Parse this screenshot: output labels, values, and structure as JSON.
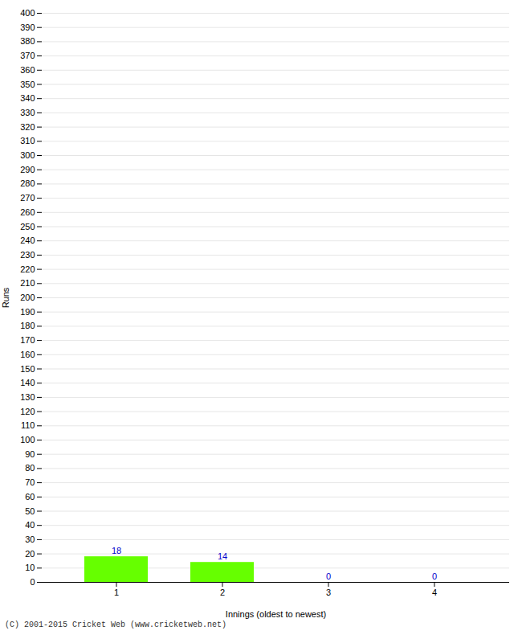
{
  "chart_data": {
    "type": "bar",
    "categories": [
      "1",
      "2",
      "3",
      "4"
    ],
    "values": [
      18,
      14,
      0,
      0
    ],
    "color": "#66ff00",
    "xlabel": "Innings (oldest to newest)",
    "ylabel": "Runs",
    "ylim": [
      0,
      400
    ],
    "yticks": [
      0,
      10,
      20,
      30,
      40,
      50,
      60,
      70,
      80,
      90,
      100,
      110,
      120,
      130,
      140,
      150,
      160,
      170,
      180,
      190,
      200,
      210,
      220,
      230,
      240,
      250,
      260,
      270,
      280,
      290,
      300,
      310,
      320,
      330,
      340,
      350,
      360,
      370,
      380,
      390,
      400
    ],
    "grid": true,
    "data_labels": true,
    "annotations": [
      "(C) 2001-2015 Cricket Web (www.cricketweb.net)"
    ]
  }
}
